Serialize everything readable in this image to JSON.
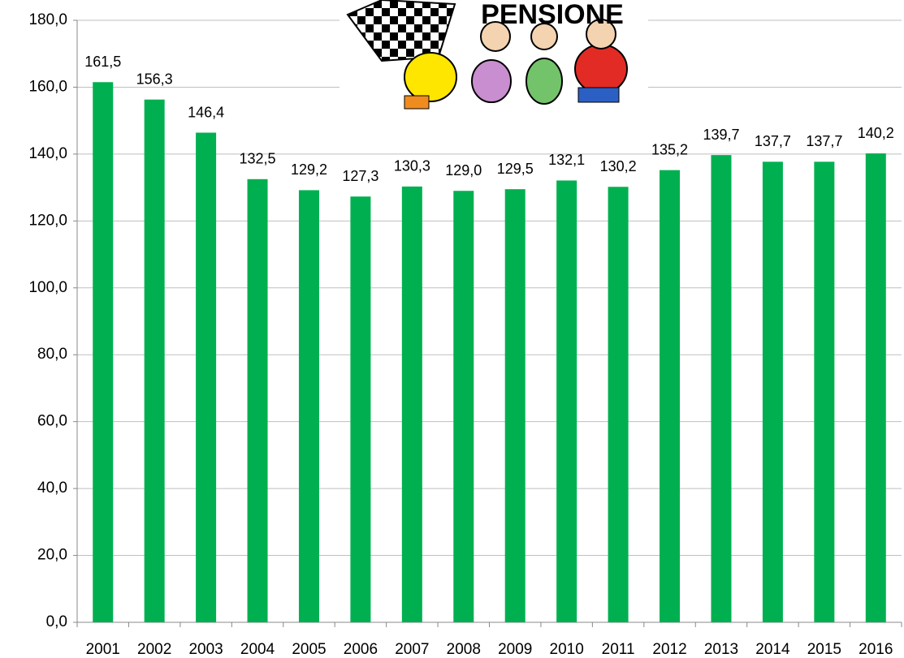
{
  "chart_data": {
    "type": "bar",
    "annotation": "PENSIONE",
    "categories": [
      "2001",
      "2002",
      "2003",
      "2004",
      "2005",
      "2006",
      "2007",
      "2008",
      "2009",
      "2010",
      "2011",
      "2012",
      "2013",
      "2014",
      "2015",
      "2016"
    ],
    "values": [
      161.5,
      156.3,
      146.4,
      132.5,
      129.2,
      127.3,
      130.3,
      129.0,
      129.5,
      132.1,
      130.2,
      135.2,
      139.7,
      137.7,
      137.7,
      140.2
    ],
    "value_labels": [
      "161,5",
      "156,3",
      "146,4",
      "132,5",
      "129,2",
      "127,3",
      "130,3",
      "129,0",
      "129,5",
      "132,1",
      "130,2",
      "135,2",
      "139,7",
      "137,7",
      "137,7",
      "140,2"
    ],
    "color": "#00b050",
    "ylim": [
      0,
      180
    ],
    "yticks": [
      {
        "value": 0,
        "label": "0,0"
      },
      {
        "value": 20,
        "label": "20,0"
      },
      {
        "value": 40,
        "label": "40,0"
      },
      {
        "value": 60,
        "label": "60,0"
      },
      {
        "value": 80,
        "label": "80,0"
      },
      {
        "value": 100,
        "label": "100,0"
      },
      {
        "value": 120,
        "label": "120,0"
      },
      {
        "value": 140,
        "label": "140,0"
      },
      {
        "value": 160,
        "label": "160,0"
      },
      {
        "value": 180,
        "label": "180,0"
      }
    ],
    "grid": true
  }
}
